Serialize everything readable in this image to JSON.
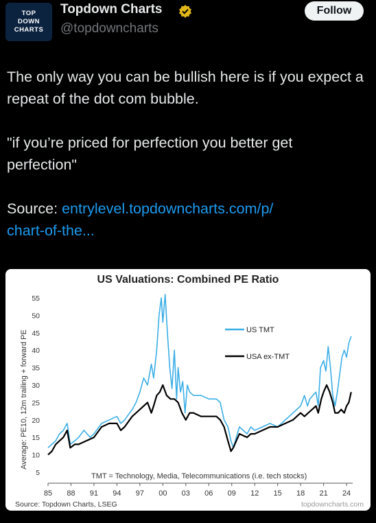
{
  "profile": {
    "name": "Topdown Charts",
    "handle": "@topdowncharts",
    "avatar_lines": [
      "TOP",
      "DOWN",
      "CHARTS"
    ],
    "follow_label": "Follow",
    "verified_icon": "verified-badge-icon"
  },
  "tweet": {
    "paragraph1": "The only way you can be bullish here is if you expect a repeat of the dot com bubble.",
    "paragraph2": "\"if you’re priced for perfection you better get perfection\"",
    "source_label": "Source: ",
    "link_line1": "entrylevel.topdowncharts.com/p/",
    "link_line2": "chart-of-the..."
  },
  "colors": {
    "background": "#000000",
    "link": "#1d9bf0",
    "tmt_series": "#3aaee6",
    "ex_tmt_series": "#000000"
  },
  "chart_data": {
    "type": "line",
    "title": "US Valuations: Combined PE Ratio",
    "ylabel": "Average: PE10, 12m trailing + forward PE",
    "xlabel": "",
    "ylim": [
      5,
      55
    ],
    "xlim": [
      1985,
      2024.8
    ],
    "y_ticks": [
      "5",
      "10",
      "15",
      "20",
      "25",
      "30",
      "35",
      "40",
      "45",
      "50",
      "55"
    ],
    "x_ticks": [
      "85",
      "88",
      "91",
      "94",
      "97",
      "00",
      "03",
      "06",
      "09",
      "12",
      "15",
      "18",
      "21",
      "24"
    ],
    "legend_placement": "center-right",
    "annotation": "TMT = Technology, Media, Telecommunications  (i.e. tech stocks)",
    "source": "Source: Topdown Charts, LSEG",
    "watermark": "topdowncharts.com",
    "series": [
      {
        "name": "US TMT",
        "x": [
          1985,
          1985.5,
          1986,
          1986.5,
          1987,
          1987.5,
          1987.9,
          1988.5,
          1989,
          1989.7,
          1990.5,
          1991,
          1992,
          1993,
          1994,
          1994.5,
          1995,
          1996,
          1996.5,
          1997,
          1997.5,
          1998,
          1998.5,
          1998.8,
          1999.2,
          1999.5,
          1999.8,
          2000,
          2000.3,
          2000.6,
          2000.9,
          2001.2,
          2001.5,
          2001.8,
          2002,
          2002.3,
          2002.6,
          2002.9,
          2003.2,
          2003.5,
          2004,
          2005,
          2006,
          2007,
          2007.5,
          2008,
          2008.5,
          2008.9,
          2009.2,
          2009.6,
          2010,
          2011,
          2011.5,
          2012,
          2013,
          2014,
          2015,
          2016,
          2017,
          2018,
          2018.5,
          2018.9,
          2019.2,
          2019.6,
          2020,
          2020.3,
          2020.6,
          2021,
          2021.3,
          2021.6,
          2021.9,
          2022.2,
          2022.5,
          2022.8,
          2023.1,
          2023.4,
          2023.7,
          2024,
          2024.3,
          2024.6
        ],
        "values": [
          12,
          13,
          14,
          16,
          17,
          19,
          13,
          14,
          15,
          17,
          15,
          16,
          19,
          20,
          21,
          19,
          20,
          23,
          25,
          28,
          32,
          30,
          36,
          32,
          40,
          50,
          55,
          48,
          56,
          45,
          35,
          29,
          40,
          26,
          35,
          28,
          31,
          22,
          30,
          28,
          27,
          27,
          26,
          26,
          25,
          20,
          18,
          14,
          12,
          15,
          18,
          16,
          18,
          17,
          18,
          19,
          18,
          20,
          22,
          24,
          27,
          24,
          26,
          27,
          28,
          24,
          35,
          37,
          34,
          41,
          35,
          27,
          24,
          28,
          33,
          38,
          40,
          38,
          42,
          44
        ]
      },
      {
        "name": "USA ex-TMT",
        "x": [
          1985,
          1985.5,
          1986,
          1986.5,
          1987,
          1987.5,
          1987.9,
          1988.5,
          1989,
          1990,
          1991,
          1992,
          1993,
          1994,
          1994.5,
          1995,
          1996,
          1997,
          1998,
          1998.5,
          1998.8,
          1999.2,
          1999.6,
          2000,
          2000.5,
          2001,
          2001.5,
          2002,
          2002.5,
          2003,
          2003.5,
          2004,
          2005,
          2006,
          2007,
          2007.5,
          2008,
          2008.5,
          2008.9,
          2009.2,
          2009.6,
          2010,
          2011,
          2011.5,
          2012,
          2013,
          2014,
          2015,
          2016,
          2017,
          2018,
          2018.5,
          2019,
          2019.5,
          2020,
          2020.3,
          2020.7,
          2021,
          2021.4,
          2021.8,
          2022.2,
          2022.5,
          2022.9,
          2023.3,
          2023.7,
          2024,
          2024.3,
          2024.6
        ],
        "values": [
          10,
          11,
          13,
          14,
          15,
          17,
          12,
          13,
          13,
          14,
          15,
          18,
          19,
          19,
          17,
          18,
          21,
          23,
          25,
          22,
          24,
          27,
          28,
          30,
          27,
          26,
          26,
          25,
          22,
          20,
          22,
          22,
          21,
          21,
          21,
          20,
          18,
          14,
          11,
          12,
          14,
          16,
          15,
          16,
          16,
          17,
          18,
          18,
          19,
          20,
          22,
          21,
          22,
          23,
          24,
          22,
          26,
          28,
          30,
          28,
          25,
          22,
          22,
          23,
          22,
          24,
          25,
          28
        ]
      }
    ]
  }
}
